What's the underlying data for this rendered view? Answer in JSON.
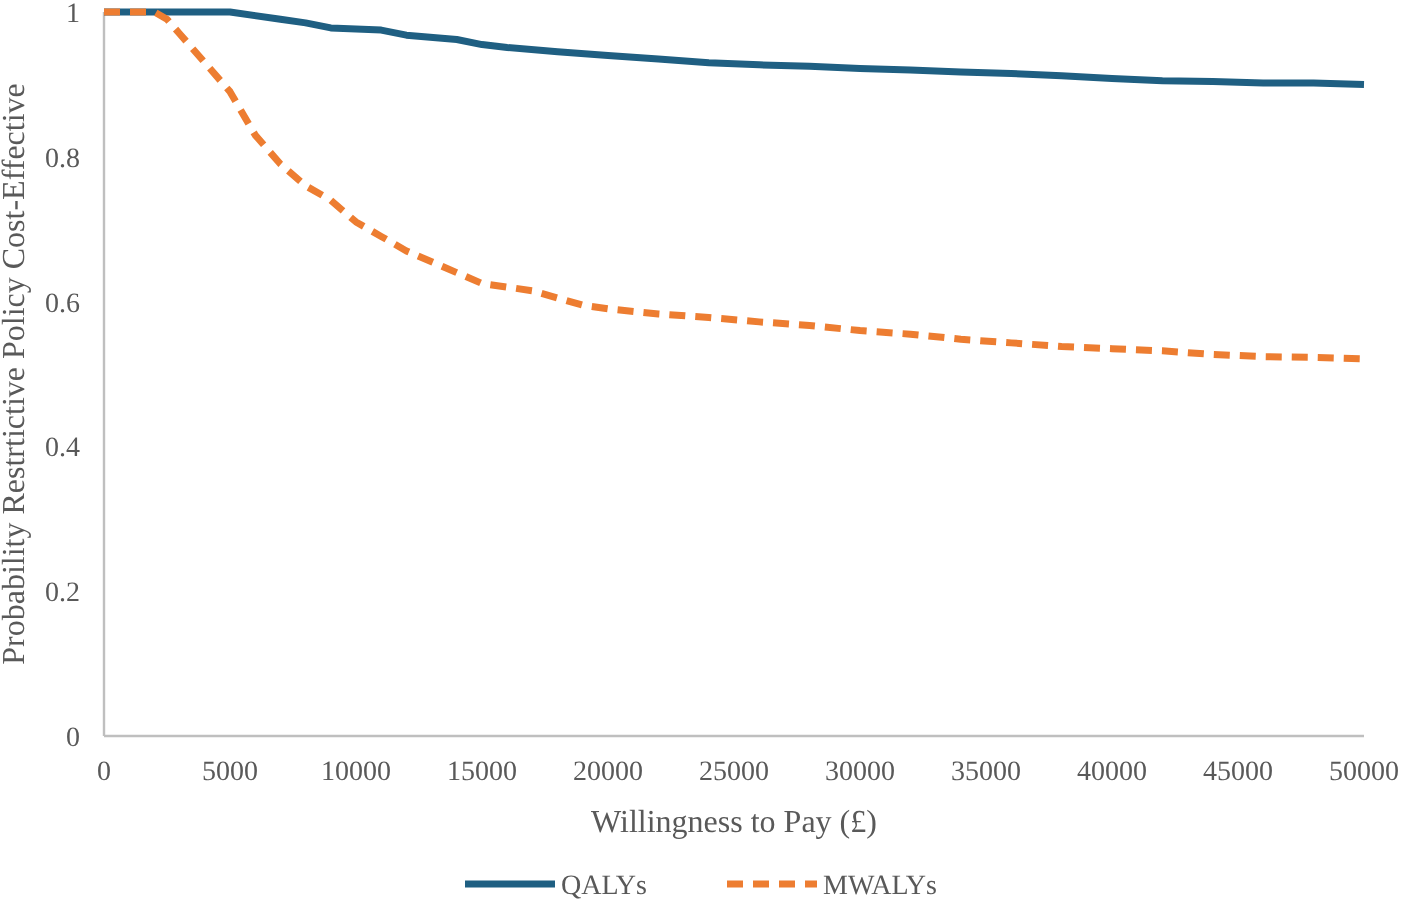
{
  "chart_data": {
    "type": "line",
    "xlabel": "Willingness to Pay (£)",
    "ylabel": "Probability  Restrtictive Policy Cost-Effective",
    "xlim": [
      0,
      50000
    ],
    "xticks": [
      0,
      5000,
      10000,
      15000,
      20000,
      25000,
      30000,
      35000,
      40000,
      45000,
      50000
    ],
    "ylim": [
      0,
      1
    ],
    "yticks": [
      0,
      0.2,
      0.4,
      0.6,
      0.8,
      1
    ],
    "grid": false,
    "legend": "bottom",
    "marker": "none",
    "series": [
      {
        "name": "QALYs",
        "color": "#1f5f82",
        "line_style": "solid",
        "x": [
          0,
          5000,
          7000,
          8000,
          9000,
          11000,
          12000,
          14000,
          15000,
          16000,
          18000,
          20000,
          22000,
          24000,
          26000,
          28000,
          30000,
          32000,
          34000,
          36000,
          38000,
          40000,
          42000,
          44000,
          46000,
          48000,
          50000
        ],
        "values": [
          1,
          1,
          0.99,
          0.985,
          0.978,
          0.975,
          0.968,
          0.962,
          0.955,
          0.951,
          0.945,
          0.94,
          0.935,
          0.93,
          0.927,
          0.925,
          0.922,
          0.92,
          0.917,
          0.915,
          0.912,
          0.908,
          0.905,
          0.904,
          0.902,
          0.902,
          0.9
        ]
      },
      {
        "name": "MWALYs",
        "color": "#ed7d31",
        "line_style": "dashed",
        "x": [
          0,
          2000,
          2500,
          3000,
          4000,
          5000,
          6000,
          7000,
          8000,
          9000,
          10000,
          11000,
          12000,
          13000,
          14000,
          15000,
          16000,
          17000,
          18000,
          19000,
          20000,
          22000,
          24000,
          26000,
          28000,
          30000,
          32000,
          34000,
          36000,
          38000,
          40000,
          42000,
          44000,
          46000,
          48000,
          50000
        ],
        "values": [
          1,
          1,
          0.99,
          0.97,
          0.93,
          0.89,
          0.83,
          0.79,
          0.76,
          0.74,
          0.71,
          0.69,
          0.67,
          0.655,
          0.64,
          0.625,
          0.62,
          0.615,
          0.605,
          0.595,
          0.59,
          0.583,
          0.578,
          0.572,
          0.567,
          0.56,
          0.555,
          0.548,
          0.543,
          0.538,
          0.535,
          0.532,
          0.527,
          0.524,
          0.523,
          0.521
        ]
      }
    ]
  }
}
